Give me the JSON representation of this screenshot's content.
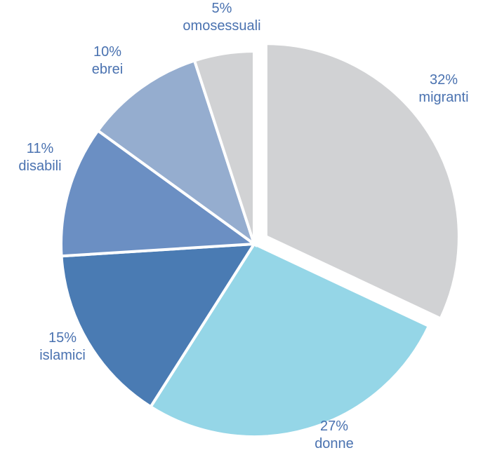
{
  "chart_data": {
    "type": "pie",
    "title": "",
    "slices": [
      {
        "category": "migranti",
        "value": 32,
        "label_pct": "32%",
        "color": "#d1d2d4",
        "exploded": true
      },
      {
        "category": "donne",
        "value": 27,
        "label_pct": "27%",
        "color": "#95d6e7",
        "exploded": false
      },
      {
        "category": "islamici",
        "value": 15,
        "label_pct": "15%",
        "color": "#4a7bb3",
        "exploded": false
      },
      {
        "category": "disabili",
        "value": 11,
        "label_pct": "11%",
        "color": "#6b8fc3",
        "exploded": false
      },
      {
        "category": "ebrei",
        "value": 10,
        "label_pct": "10%",
        "color": "#95adcf",
        "exploded": false
      },
      {
        "category": "omosessuali",
        "value": 5,
        "label_pct": "5%",
        "color": "#d1d2d4",
        "exploded": false
      }
    ],
    "label_color": "#4a72b0",
    "start": "top",
    "direction": "clockwise",
    "legend": "none"
  }
}
